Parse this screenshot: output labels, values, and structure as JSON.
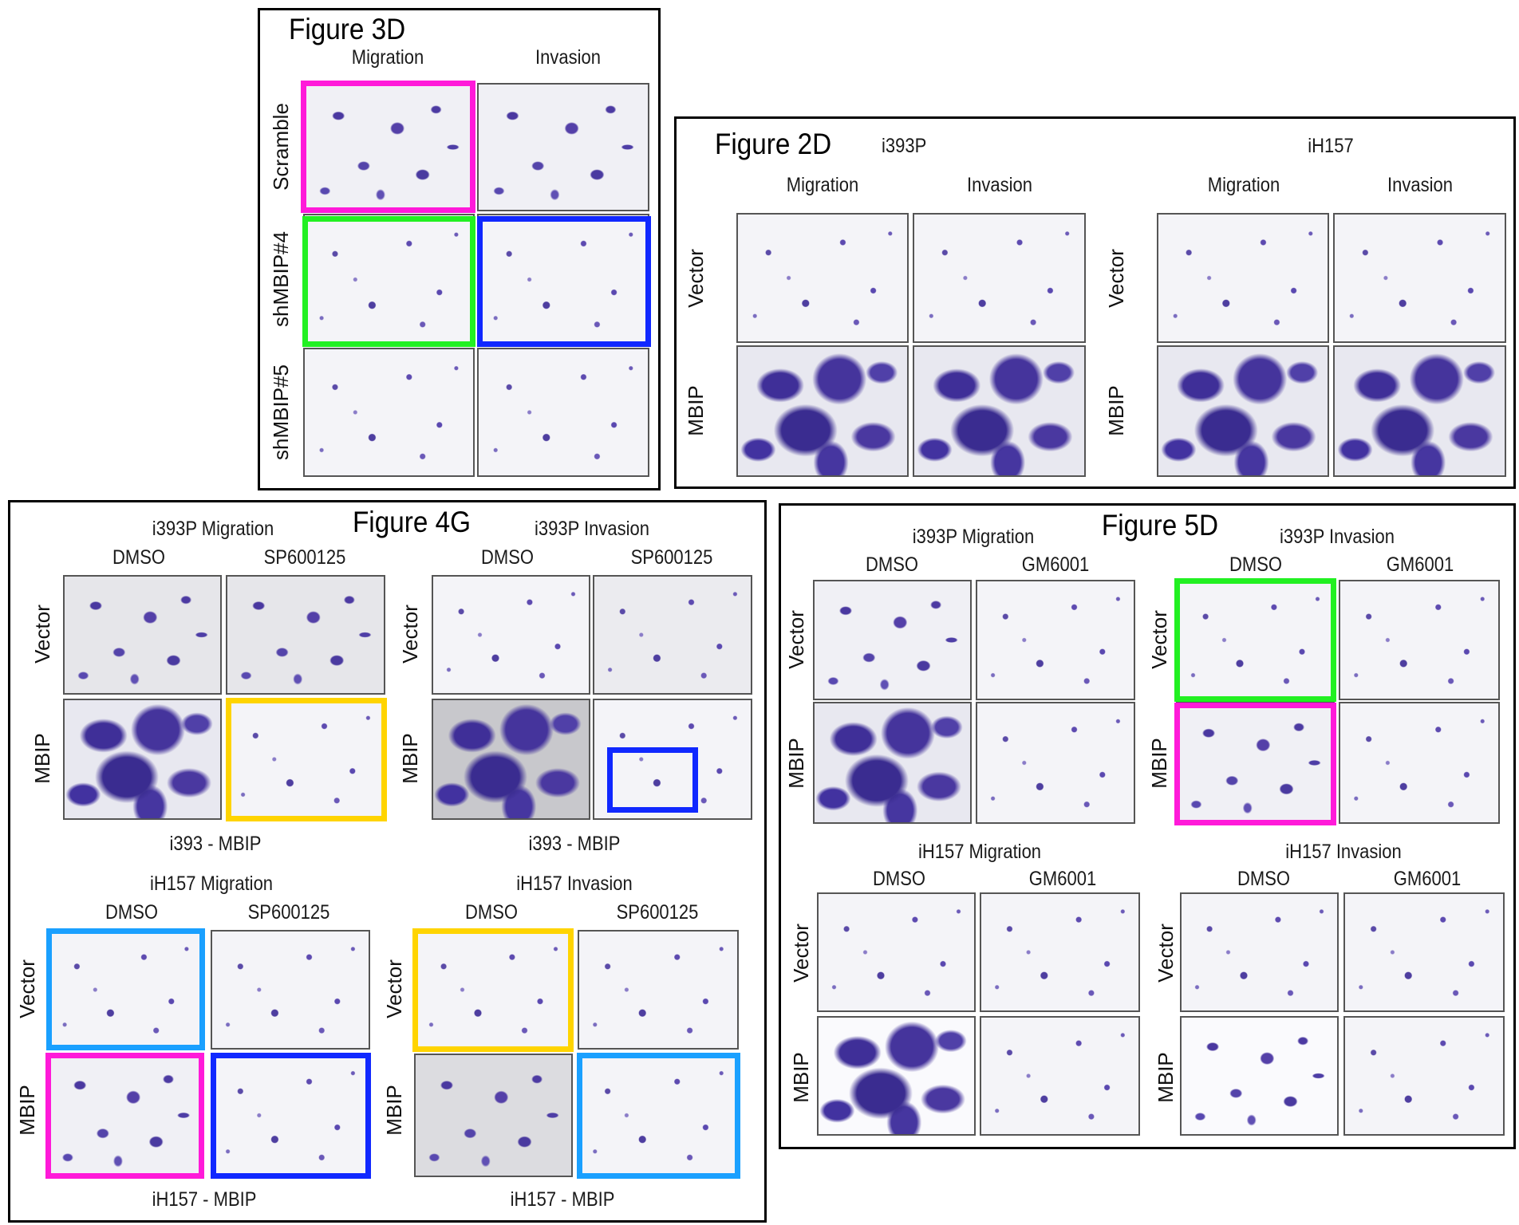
{
  "colors": {
    "magenta": "#ff1ad9",
    "green": "#22f022",
    "blue": "#1028ff",
    "yellow": "#ffd400",
    "light_blue": "#1aa0ff",
    "stain": "#4a38a0"
  },
  "fig3d": {
    "title": "Figure 3D",
    "columns": [
      "Migration",
      "Invasion"
    ],
    "rows": [
      "Scramble",
      "shMBIP#4",
      "shMBIP#5"
    ]
  },
  "fig2d": {
    "title": "Figure 2D",
    "groups": [
      {
        "name": "i393P",
        "columns": [
          "Migration",
          "Invasion"
        ]
      },
      {
        "name": "iH157",
        "columns": [
          "Migration",
          "Invasion"
        ]
      }
    ],
    "rows": [
      "Vector",
      "MBIP"
    ]
  },
  "fig4g": {
    "title": "Figure 4G",
    "blocks": [
      {
        "header": "i393P Migration",
        "columns": [
          "DMSO",
          "SP600125"
        ],
        "footer": "i393 - MBIP"
      },
      {
        "header": "i393P Invasion",
        "columns": [
          "DMSO",
          "SP600125"
        ],
        "footer": "i393 - MBIP"
      },
      {
        "header": "iH157 Migration",
        "columns": [
          "DMSO",
          "SP600125"
        ],
        "footer": "iH157 - MBIP"
      },
      {
        "header": "iH157 Invasion",
        "columns": [
          "DMSO",
          "SP600125"
        ],
        "footer": "iH157 - MBIP"
      }
    ],
    "rows": [
      "Vector",
      "MBIP"
    ]
  },
  "fig5d": {
    "title": "Figure 5D",
    "blocks": [
      {
        "header": "i393P Migration",
        "columns": [
          "DMSO",
          "GM6001"
        ]
      },
      {
        "header": "i393P Invasion",
        "columns": [
          "DMSO",
          "GM6001"
        ]
      },
      {
        "header": "iH157 Migration",
        "columns": [
          "DMSO",
          "GM6001"
        ]
      },
      {
        "header": "iH157 Invasion",
        "columns": [
          "DMSO",
          "GM6001"
        ]
      }
    ],
    "rows": [
      "Vector",
      "MBIP"
    ]
  }
}
